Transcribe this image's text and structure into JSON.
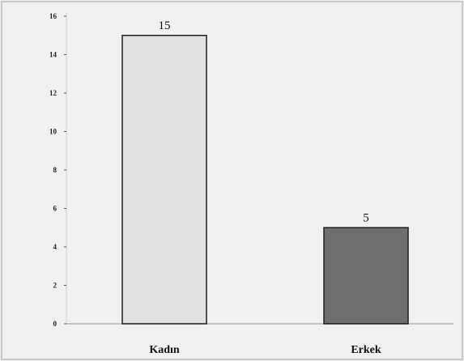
{
  "chart_data": {
    "type": "bar",
    "categories": [
      "Kadın",
      "Erkek"
    ],
    "values": [
      15,
      5
    ],
    "data_labels": [
      "15",
      "5"
    ],
    "title": "",
    "xlabel": "",
    "ylabel": "",
    "ylim": [
      0,
      16
    ],
    "yticks": [
      0,
      2,
      4,
      6,
      8,
      10,
      12,
      14,
      16
    ],
    "grid": false,
    "legend": "none",
    "bar_colors": [
      "#e2e2e0",
      "#6e6e6e"
    ],
    "bar_edge_color": "#1e1e1e",
    "background_color": "#f1f1ef"
  }
}
